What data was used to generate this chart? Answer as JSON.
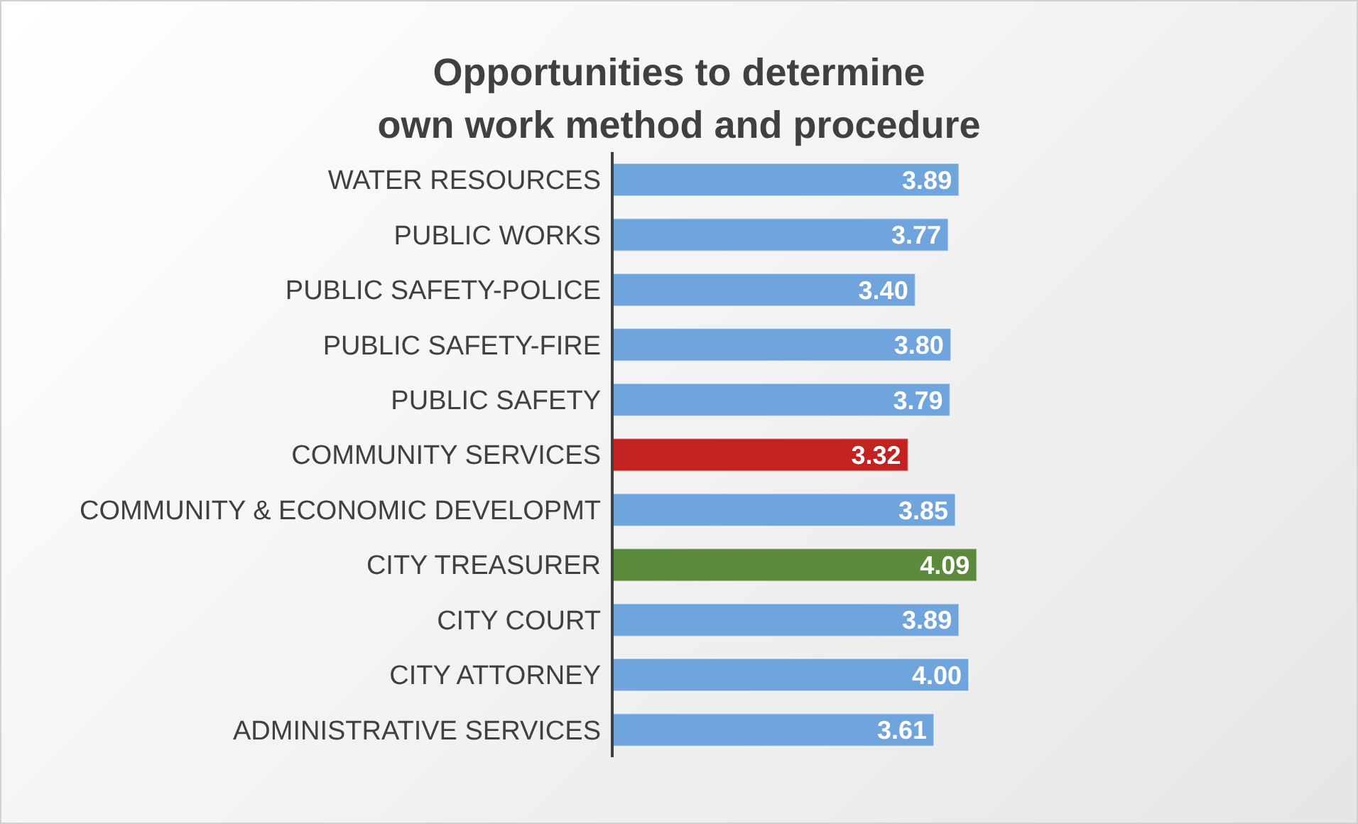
{
  "chart_data": {
    "type": "bar",
    "orientation": "horizontal",
    "title": "Opportunities to determine\nown work method and procedure",
    "categories": [
      "WATER RESOURCES",
      "PUBLIC WORKS",
      "PUBLIC SAFETY-POLICE",
      "PUBLIC SAFETY-FIRE",
      "PUBLIC SAFETY",
      "COMMUNITY SERVICES",
      "COMMUNITY & ECONOMIC DEVELOPMT",
      "CITY TREASURER",
      "CITY COURT",
      "CITY ATTORNEY",
      "ADMINISTRATIVE SERVICES"
    ],
    "values": [
      3.89,
      3.77,
      3.4,
      3.8,
      3.79,
      3.32,
      3.85,
      4.09,
      3.89,
      4.0,
      3.61
    ],
    "value_labels": [
      "3.89",
      "3.77",
      "3.40",
      "3.80",
      "3.79",
      "3.32",
      "3.85",
      "4.09",
      "3.89",
      "4.00",
      "3.61"
    ],
    "colors": [
      "#6fa5dc",
      "#6fa5dc",
      "#6fa5dc",
      "#6fa5dc",
      "#6fa5dc",
      "#c42121",
      "#6fa5dc",
      "#5b8a3c",
      "#6fa5dc",
      "#6fa5dc",
      "#6fa5dc"
    ],
    "tick_labels": "y"
  }
}
